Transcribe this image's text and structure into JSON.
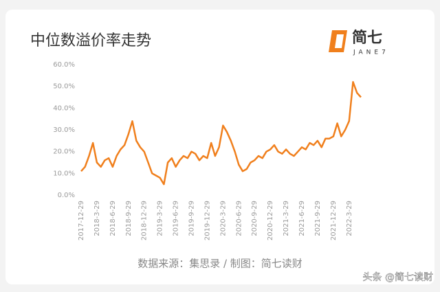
{
  "chart_data": {
    "type": "line",
    "title": "中位数溢价率走势",
    "logo_text": "简七",
    "logo_subtext": "JANE7",
    "source": "数据来源：集思录 / 制图：简七读财",
    "watermark": "头条 @简七读财",
    "color": "#f07f1c",
    "grid": false,
    "categories": [
      "2017-12-29",
      null,
      null,
      null,
      "2018-3-29",
      null,
      null,
      null,
      "2018-6-29",
      null,
      null,
      null,
      "2018-9-29",
      null,
      null,
      null,
      "2018-12-29",
      null,
      null,
      null,
      "2019-3-29",
      null,
      null,
      null,
      "2019-6-29",
      null,
      null,
      null,
      "2019-9-29",
      null,
      null,
      null,
      "2019-12-29",
      null,
      null,
      null,
      "2020-3-29",
      null,
      null,
      null,
      "2020-6-29",
      null,
      null,
      null,
      "2020-9-29",
      null,
      null,
      null,
      "2020-12-29",
      null,
      null,
      null,
      "2021-3-29",
      null,
      null,
      null,
      "2021-6-29",
      null,
      null,
      null,
      "2021-9-29",
      null,
      null,
      null,
      "2021-12-29",
      null,
      null,
      null,
      "2022-3-29",
      null,
      null,
      null
    ],
    "values": [
      11,
      13,
      18,
      24,
      15,
      13,
      16,
      17,
      13,
      18,
      21,
      23,
      28,
      34,
      25,
      22,
      20,
      15,
      10,
      9,
      8,
      5,
      15,
      17,
      13,
      16,
      18,
      17,
      20,
      19,
      16,
      18,
      17,
      24,
      18,
      22,
      32,
      29,
      25,
      20,
      14,
      11,
      12,
      15,
      16,
      18,
      17,
      20,
      21,
      23,
      20,
      19,
      21,
      19,
      18,
      20,
      22,
      21,
      24,
      23,
      25,
      22,
      26,
      26,
      27,
      33,
      27,
      30,
      34,
      52,
      47,
      45
    ],
    "ylim": [
      0,
      60
    ],
    "yticks": [
      {
        "value": 0,
        "label": "0.0%"
      },
      {
        "value": 10,
        "label": "10.0%"
      },
      {
        "value": 20,
        "label": "20.0%"
      },
      {
        "value": 30,
        "label": "30.0%"
      },
      {
        "value": 40,
        "label": "40.0%"
      },
      {
        "value": 50,
        "label": "50.0%"
      },
      {
        "value": 60,
        "label": "60.0%"
      }
    ]
  }
}
